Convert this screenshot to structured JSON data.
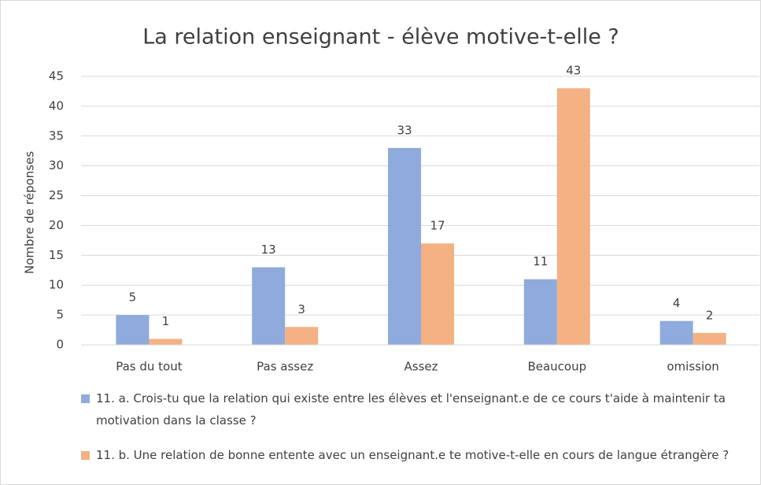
{
  "chart_data": {
    "type": "bar",
    "title": "La relation enseignant - élève motive-t-elle ?",
    "y_label": "Nombre de réponses",
    "categories": [
      "Pas du tout",
      "Pas assez",
      "Assez",
      "Beaucoup",
      "omission"
    ],
    "series": [
      {
        "name": "11. a. Crois-tu que la relation qui existe entre les élèves et l'enseignant.e de ce cours t'aide à maintenir ta motivation dans la classe ?",
        "color": "#8faadc",
        "values": [
          5,
          13,
          33,
          11,
          4
        ]
      },
      {
        "name": "11. b. Une relation de bonne entente avec un enseignant.e te motive-t-elle en cours de langue étrangère ?",
        "color": "#f4b183",
        "values": [
          1,
          3,
          17,
          43,
          2
        ]
      }
    ],
    "ylim": [
      0,
      45
    ],
    "yticks": [
      0,
      5,
      10,
      15,
      20,
      25,
      30,
      35,
      40,
      45
    ],
    "grid": true
  }
}
